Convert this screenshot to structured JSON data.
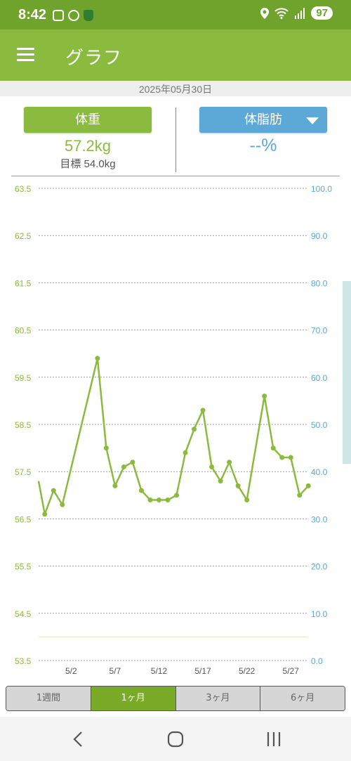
{
  "status": {
    "time": "8:42",
    "battery": "97"
  },
  "appbar": {
    "title": "グラフ"
  },
  "date": "2025年05月30日",
  "weight": {
    "label": "体重",
    "value": "57.2kg",
    "target": "目標 54.0kg"
  },
  "bodyfat": {
    "label": "体脂肪",
    "value": "--%"
  },
  "colors": {
    "green": "#8bbb3e",
    "blue": "#5ca8d6",
    "statusbar": "#6fa32c"
  },
  "chart_data": {
    "type": "line",
    "x_tick_labels": [
      "5/2",
      "5/7",
      "5/12",
      "5/17",
      "5/22",
      "5/27"
    ],
    "y_left_ticks": [
      "63.5",
      "62.5",
      "61.5",
      "60.5",
      "59.5",
      "58.5",
      "57.5",
      "56.5",
      "55.5",
      "54.5",
      "53.5"
    ],
    "y_right_ticks": [
      "100.0",
      "90.0",
      "80.0",
      "70.0",
      "60.0",
      "50.0",
      "40.0",
      "30.0",
      "20.0",
      "10.0",
      "0.0"
    ],
    "ylim_left": [
      53.5,
      63.5
    ],
    "ylim_right": [
      0,
      100
    ],
    "target_line": 54.0,
    "x_day_range": [
      29.3,
      59.9
    ],
    "series": [
      {
        "points": [
          [
            29.3,
            57.3
          ],
          [
            30,
            56.6
          ],
          [
            31,
            57.1
          ],
          [
            32,
            56.8
          ],
          [
            36,
            59.9
          ],
          [
            37,
            58.0
          ],
          [
            38,
            57.2
          ],
          [
            39,
            57.6
          ],
          [
            40,
            57.7
          ],
          [
            41,
            57.1
          ],
          [
            42,
            56.9
          ],
          [
            43,
            56.9
          ],
          [
            44,
            56.9
          ],
          [
            45,
            57.0
          ],
          [
            46,
            57.9
          ],
          [
            47,
            58.4
          ],
          [
            48,
            58.8
          ],
          [
            49,
            57.6
          ],
          [
            50,
            57.3
          ],
          [
            51,
            57.7
          ],
          [
            52,
            57.2
          ],
          [
            53,
            56.9
          ],
          [
            55,
            59.1
          ],
          [
            56,
            58.0
          ],
          [
            57,
            57.8
          ],
          [
            58,
            57.8
          ],
          [
            59,
            57.0
          ],
          [
            60,
            57.2
          ]
        ]
      }
    ],
    "grid": true
  },
  "periods": [
    "1週間",
    "1ヶ月",
    "3ヶ月",
    "6ヶ月"
  ],
  "active_period": 1
}
